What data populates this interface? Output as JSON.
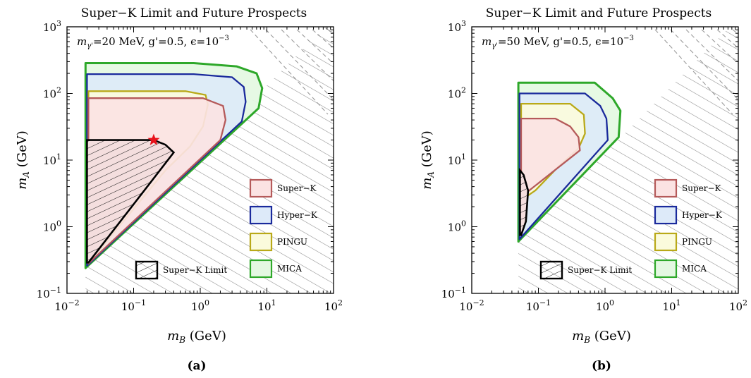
{
  "chart_data": [
    {
      "type": "area",
      "panel_label": "(a)",
      "title": "Super−K Limit and Future Prospects",
      "annotation": {
        "base": "m",
        "sub": "γ'",
        "mid": "=20 MeV, g'=0.5, ",
        "eps": "ϵ=10",
        "exp": "−3"
      },
      "xlabel": {
        "base": "m",
        "sub": "B",
        "rest": " (GeV)"
      },
      "ylabel": {
        "base": "m",
        "sub": "A",
        "rest": " (GeV)"
      },
      "xscale": "log",
      "yscale": "log",
      "xlim": [
        0.01,
        100
      ],
      "ylim": [
        0.1,
        1000
      ],
      "xticks": [
        {
          "v": 0.01,
          "m": "10",
          "e": "−2"
        },
        {
          "v": 0.1,
          "m": "10",
          "e": "−1"
        },
        {
          "v": 1,
          "m": "10",
          "e": "0"
        },
        {
          "v": 10,
          "m": "10",
          "e": "1"
        },
        {
          "v": 100,
          "m": "10",
          "e": "2"
        }
      ],
      "yticks": [
        {
          "v": 0.1,
          "m": "10",
          "e": "−1"
        },
        {
          "v": 1,
          "m": "10",
          "e": "0"
        },
        {
          "v": 10,
          "m": "10",
          "e": "1"
        },
        {
          "v": 100,
          "m": "10",
          "e": "2"
        },
        {
          "v": 1000,
          "m": "10",
          "e": "3"
        }
      ],
      "excluded_region_boundary": [
        [
          0.019,
          0.24
        ],
        [
          60,
          800
        ]
      ],
      "regions": [
        {
          "name": "MICA",
          "fill": "#e4f8e2",
          "stroke": "#2ea82a",
          "points": [
            [
              0.019,
              0.24
            ],
            [
              0.019,
              285
            ],
            [
              0.8,
              285
            ],
            [
              3.5,
              255
            ],
            [
              7,
              200
            ],
            [
              8.5,
              120
            ],
            [
              7.5,
              60
            ],
            [
              0.019,
              0.24
            ]
          ]
        },
        {
          "name": "Hyper−K",
          "fill": "#ddeaf9",
          "stroke": "#1a2a9c",
          "points": [
            [
              0.02,
              0.26
            ],
            [
              0.02,
              195
            ],
            [
              0.8,
              195
            ],
            [
              3,
              175
            ],
            [
              4.5,
              125
            ],
            [
              4.8,
              75
            ],
            [
              4.2,
              38
            ],
            [
              0.02,
              0.26
            ]
          ]
        },
        {
          "name": "PINGU",
          "fill": "#fbfbdc",
          "stroke": "#b9a918",
          "points": [
            [
              0.021,
              0.28
            ],
            [
              0.021,
              108
            ],
            [
              0.6,
              108
            ],
            [
              1.2,
              95
            ],
            [
              1.3,
              68
            ],
            [
              1.1,
              32
            ],
            [
              0.7,
              16
            ],
            [
              0.3,
              7
            ],
            [
              0.021,
              0.28
            ]
          ]
        },
        {
          "name": "Super−K",
          "fill": "#fbe3e3",
          "stroke": "#b55a5a",
          "points": [
            [
              0.021,
              0.28
            ],
            [
              0.021,
              85
            ],
            [
              1.1,
              85
            ],
            [
              2.2,
              65
            ],
            [
              2.4,
              40
            ],
            [
              2,
              20
            ],
            [
              0.021,
              0.28
            ]
          ]
        }
      ],
      "limit": {
        "name": "Super−K Limit",
        "points": [
          [
            0.02,
            0.29
          ],
          [
            0.02,
            20
          ],
          [
            0.2,
            20
          ],
          [
            0.3,
            17
          ],
          [
            0.4,
            13
          ],
          [
            0.021,
            0.29
          ]
        ]
      },
      "star": [
        0.2,
        20
      ],
      "legend": [
        {
          "label": "Super−K",
          "fill": "#fbe3e3",
          "stroke": "#b55a5a"
        },
        {
          "label": "Hyper−K",
          "fill": "#ddeaf9",
          "stroke": "#1a2a9c"
        },
        {
          "label": "PINGU",
          "fill": "#fbfbdc",
          "stroke": "#b9a918"
        },
        {
          "label": "MICA",
          "fill": "#e4f8e2",
          "stroke": "#2ea82a"
        }
      ],
      "limit_legend_label": "Super−K Limit"
    },
    {
      "type": "area",
      "panel_label": "(b)",
      "title": "Super−K Limit and Future Prospects",
      "annotation": {
        "base": "m",
        "sub": "γ'",
        "mid": "=50 MeV, g'=0.5, ",
        "eps": "ϵ=10",
        "exp": "−3"
      },
      "xlabel": {
        "base": "m",
        "sub": "B",
        "rest": " (GeV)"
      },
      "ylabel": {
        "base": "m",
        "sub": "A",
        "rest": " (GeV)"
      },
      "xscale": "log",
      "yscale": "log",
      "xlim": [
        0.01,
        100
      ],
      "ylim": [
        0.1,
        1000
      ],
      "xticks": [
        {
          "v": 0.01,
          "m": "10",
          "e": "−2"
        },
        {
          "v": 0.1,
          "m": "10",
          "e": "−1"
        },
        {
          "v": 1,
          "m": "10",
          "e": "0"
        },
        {
          "v": 10,
          "m": "10",
          "e": "1"
        },
        {
          "v": 100,
          "m": "10",
          "e": "2"
        }
      ],
      "yticks": [
        {
          "v": 0.1,
          "m": "10",
          "e": "−1"
        },
        {
          "v": 1,
          "m": "10",
          "e": "0"
        },
        {
          "v": 10,
          "m": "10",
          "e": "1"
        },
        {
          "v": 100,
          "m": "10",
          "e": "2"
        },
        {
          "v": 1000,
          "m": "10",
          "e": "3"
        }
      ],
      "excluded_region_boundary": [
        [
          0.05,
          0.6
        ],
        [
          60,
          800
        ]
      ],
      "regions": [
        {
          "name": "MICA",
          "fill": "#e4f8e2",
          "stroke": "#2ea82a",
          "points": [
            [
              0.05,
              0.6
            ],
            [
              0.05,
              145
            ],
            [
              0.7,
              145
            ],
            [
              1.3,
              85
            ],
            [
              1.7,
              55
            ],
            [
              1.6,
              22
            ],
            [
              0.05,
              0.6
            ]
          ]
        },
        {
          "name": "Hyper−K",
          "fill": "#ddeaf9",
          "stroke": "#1a2a9c",
          "points": [
            [
              0.052,
              0.65
            ],
            [
              0.052,
              100
            ],
            [
              0.5,
              100
            ],
            [
              0.85,
              65
            ],
            [
              1.05,
              42
            ],
            [
              1.1,
              20
            ],
            [
              0.052,
              0.65
            ]
          ]
        },
        {
          "name": "PINGU",
          "fill": "#fbfbdc",
          "stroke": "#b9a918",
          "points": [
            [
              0.055,
              2.5
            ],
            [
              0.055,
              70
            ],
            [
              0.3,
              70
            ],
            [
              0.48,
              48
            ],
            [
              0.5,
              25
            ],
            [
              0.4,
              15
            ],
            [
              0.2,
              8
            ],
            [
              0.09,
              3.5
            ],
            [
              0.055,
              2.5
            ]
          ]
        },
        {
          "name": "Super−K",
          "fill": "#fbe3e3",
          "stroke": "#b55a5a",
          "points": [
            [
              0.055,
              2.8
            ],
            [
              0.055,
              42
            ],
            [
              0.18,
              42
            ],
            [
              0.3,
              32
            ],
            [
              0.4,
              22
            ],
            [
              0.42,
              14
            ],
            [
              0.055,
              2.8
            ]
          ]
        }
      ],
      "limit": {
        "name": "Super−K Limit",
        "points": [
          [
            0.053,
            0.75
          ],
          [
            0.053,
            7
          ],
          [
            0.06,
            6
          ],
          [
            0.07,
            3.5
          ],
          [
            0.065,
            1.2
          ],
          [
            0.055,
            0.75
          ]
        ]
      },
      "legend": [
        {
          "label": "Super−K",
          "fill": "#fbe3e3",
          "stroke": "#b55a5a"
        },
        {
          "label": "Hyper−K",
          "fill": "#ddeaf9",
          "stroke": "#1a2a9c"
        },
        {
          "label": "PINGU",
          "fill": "#fbfbdc",
          "stroke": "#b9a918"
        },
        {
          "label": "MICA",
          "fill": "#e4f8e2",
          "stroke": "#2ea82a"
        }
      ],
      "limit_legend_label": "Super−K Limit"
    }
  ]
}
